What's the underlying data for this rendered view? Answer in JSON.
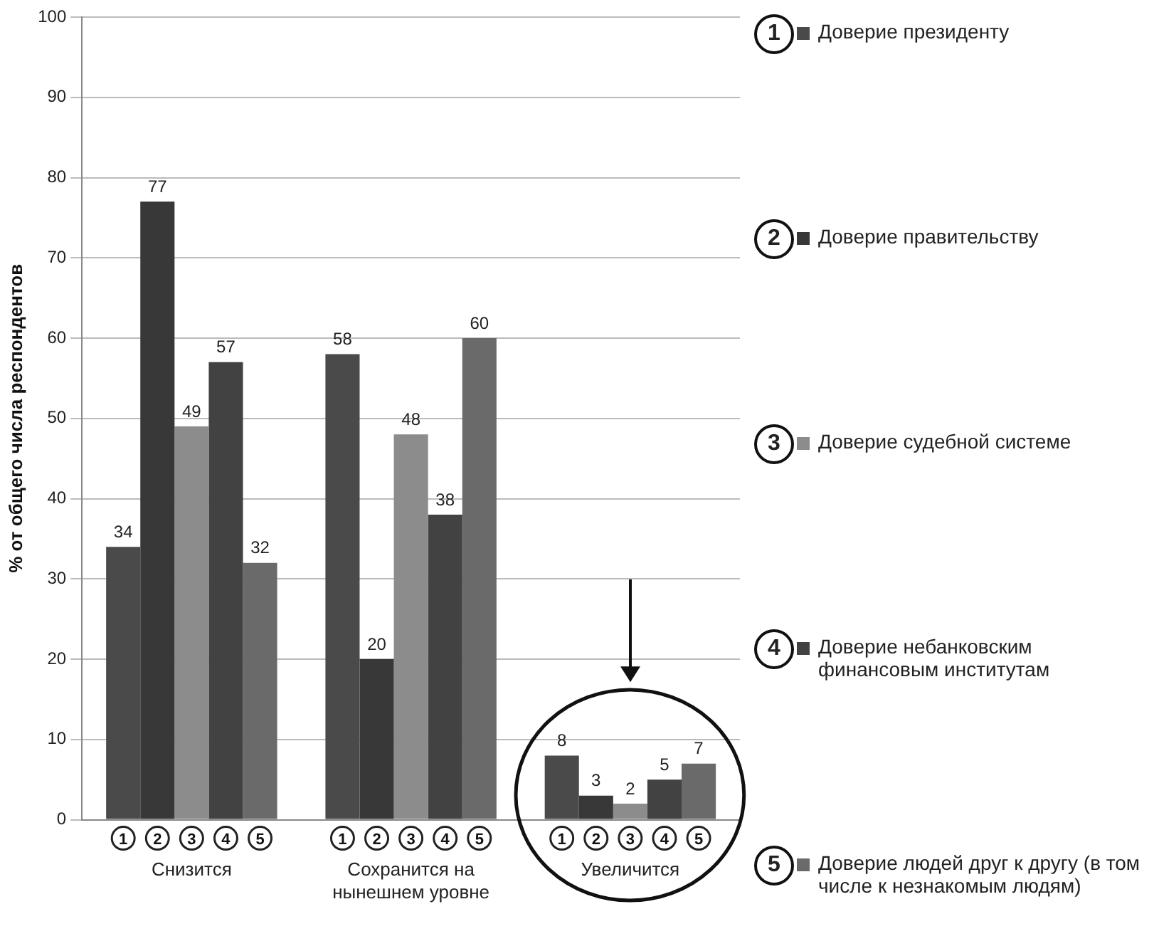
{
  "chart_data": {
    "type": "bar",
    "ylabel": "% от общего числа респондентов",
    "categories": [
      "Снизится",
      "Сохранится на нынешнем уровне",
      "Увеличится"
    ],
    "series": [
      {
        "name": "Доверие президенту",
        "color": "#4a4a4a",
        "values": [
          34,
          58,
          8
        ]
      },
      {
        "name": "Доверие правительству",
        "color": "#383838",
        "values": [
          77,
          20,
          3
        ]
      },
      {
        "name": "Доверие судебной системе",
        "color": "#8c8c8c",
        "values": [
          49,
          48,
          2
        ]
      },
      {
        "name": "Доверие небанковским финансовым институтам",
        "color": "#424242",
        "values": [
          57,
          38,
          5
        ]
      },
      {
        "name": "Доверие людей друг к другу (в том числе к незнакомым людям)",
        "color": "#6a6a6a",
        "values": [
          32,
          60,
          7
        ]
      }
    ],
    "annotations": [
      "1",
      "2",
      "3",
      "4",
      "5"
    ],
    "ylim": [
      0,
      100
    ],
    "yticks": [
      0,
      10,
      20,
      30,
      40,
      50,
      60,
      70,
      80,
      90,
      100
    ],
    "grid": "y",
    "legend": "right",
    "data_labels": true
  }
}
